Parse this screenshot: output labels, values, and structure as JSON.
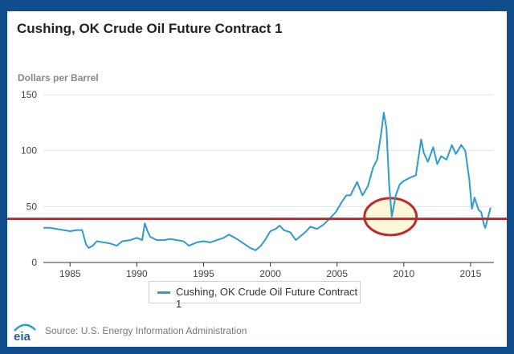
{
  "chart_data": {
    "type": "line",
    "title": "Cushing, OK Crude Oil Future Contract 1",
    "ylabel": "Dollars per Barrel",
    "xlim": [
      1983,
      2016.75
    ],
    "ylim": [
      0,
      150
    ],
    "yticks": [
      0,
      50,
      100,
      150
    ],
    "xticks": [
      1985,
      1990,
      1995,
      2000,
      2005,
      2010,
      2015
    ],
    "grid": "horizontal",
    "legend": "bottom-center",
    "series": [
      {
        "name": "Cushing, OK Crude Oil Future Contract 1",
        "color": "#2b9ccd",
        "x": [
          1983.0,
          1983.5,
          1984.0,
          1984.5,
          1985.0,
          1985.5,
          1985.9,
          1986.2,
          1986.4,
          1986.7,
          1987.0,
          1987.5,
          1988.0,
          1988.5,
          1988.9,
          1989.5,
          1990.0,
          1990.4,
          1990.6,
          1990.8,
          1991.0,
          1991.5,
          1992.0,
          1992.5,
          1993.0,
          1993.5,
          1993.9,
          1994.5,
          1995.0,
          1995.5,
          1996.0,
          1996.5,
          1996.9,
          1997.5,
          1998.0,
          1998.5,
          1998.9,
          1999.3,
          1999.6,
          2000.0,
          2000.4,
          2000.7,
          2001.0,
          2001.5,
          2001.9,
          2002.3,
          2002.7,
          2003.0,
          2003.5,
          2004.0,
          2004.5,
          2004.9,
          2005.4,
          2005.7,
          2006.0,
          2006.5,
          2006.9,
          2007.3,
          2007.7,
          2008.0,
          2008.3,
          2008.5,
          2008.7,
          2008.9,
          2009.1,
          2009.4,
          2009.7,
          2010.0,
          2010.5,
          2010.9,
          2011.3,
          2011.5,
          2011.8,
          2012.2,
          2012.5,
          2012.8,
          2013.2,
          2013.6,
          2013.9,
          2014.3,
          2014.6,
          2014.9,
          2015.1,
          2015.3,
          2015.6,
          2015.8,
          2016.0,
          2016.1,
          2016.5
        ],
        "values": [
          31,
          31,
          30,
          29,
          28,
          29,
          29,
          16,
          13,
          15,
          19,
          18,
          17,
          15,
          19,
          20,
          22,
          20,
          35,
          28,
          23,
          20,
          20,
          21,
          20,
          19,
          15,
          18,
          19,
          18,
          20,
          22,
          25,
          21,
          17,
          13,
          11,
          15,
          20,
          28,
          30,
          33,
          29,
          27,
          20,
          24,
          28,
          32,
          30,
          34,
          40,
          45,
          55,
          60,
          60,
          72,
          60,
          68,
          85,
          92,
          115,
          134,
          120,
          70,
          41,
          60,
          70,
          73,
          76,
          78,
          110,
          98,
          90,
          103,
          88,
          95,
          92,
          105,
          97,
          105,
          100,
          75,
          48,
          58,
          47,
          45,
          34,
          31,
          49
        ]
      }
    ],
    "annotations": [
      {
        "type": "horizontal-line",
        "y": 39,
        "color": "#c0282d"
      },
      {
        "type": "ellipse",
        "cx": 2009.0,
        "cy": 41,
        "rx_years": 1.95,
        "ry_value": 16.5,
        "stroke": "#c0282d",
        "fill": "#fdf6d2"
      }
    ]
  },
  "footer": {
    "logo_text": "eia",
    "source": "Source: U.S. Energy Information Administration"
  }
}
